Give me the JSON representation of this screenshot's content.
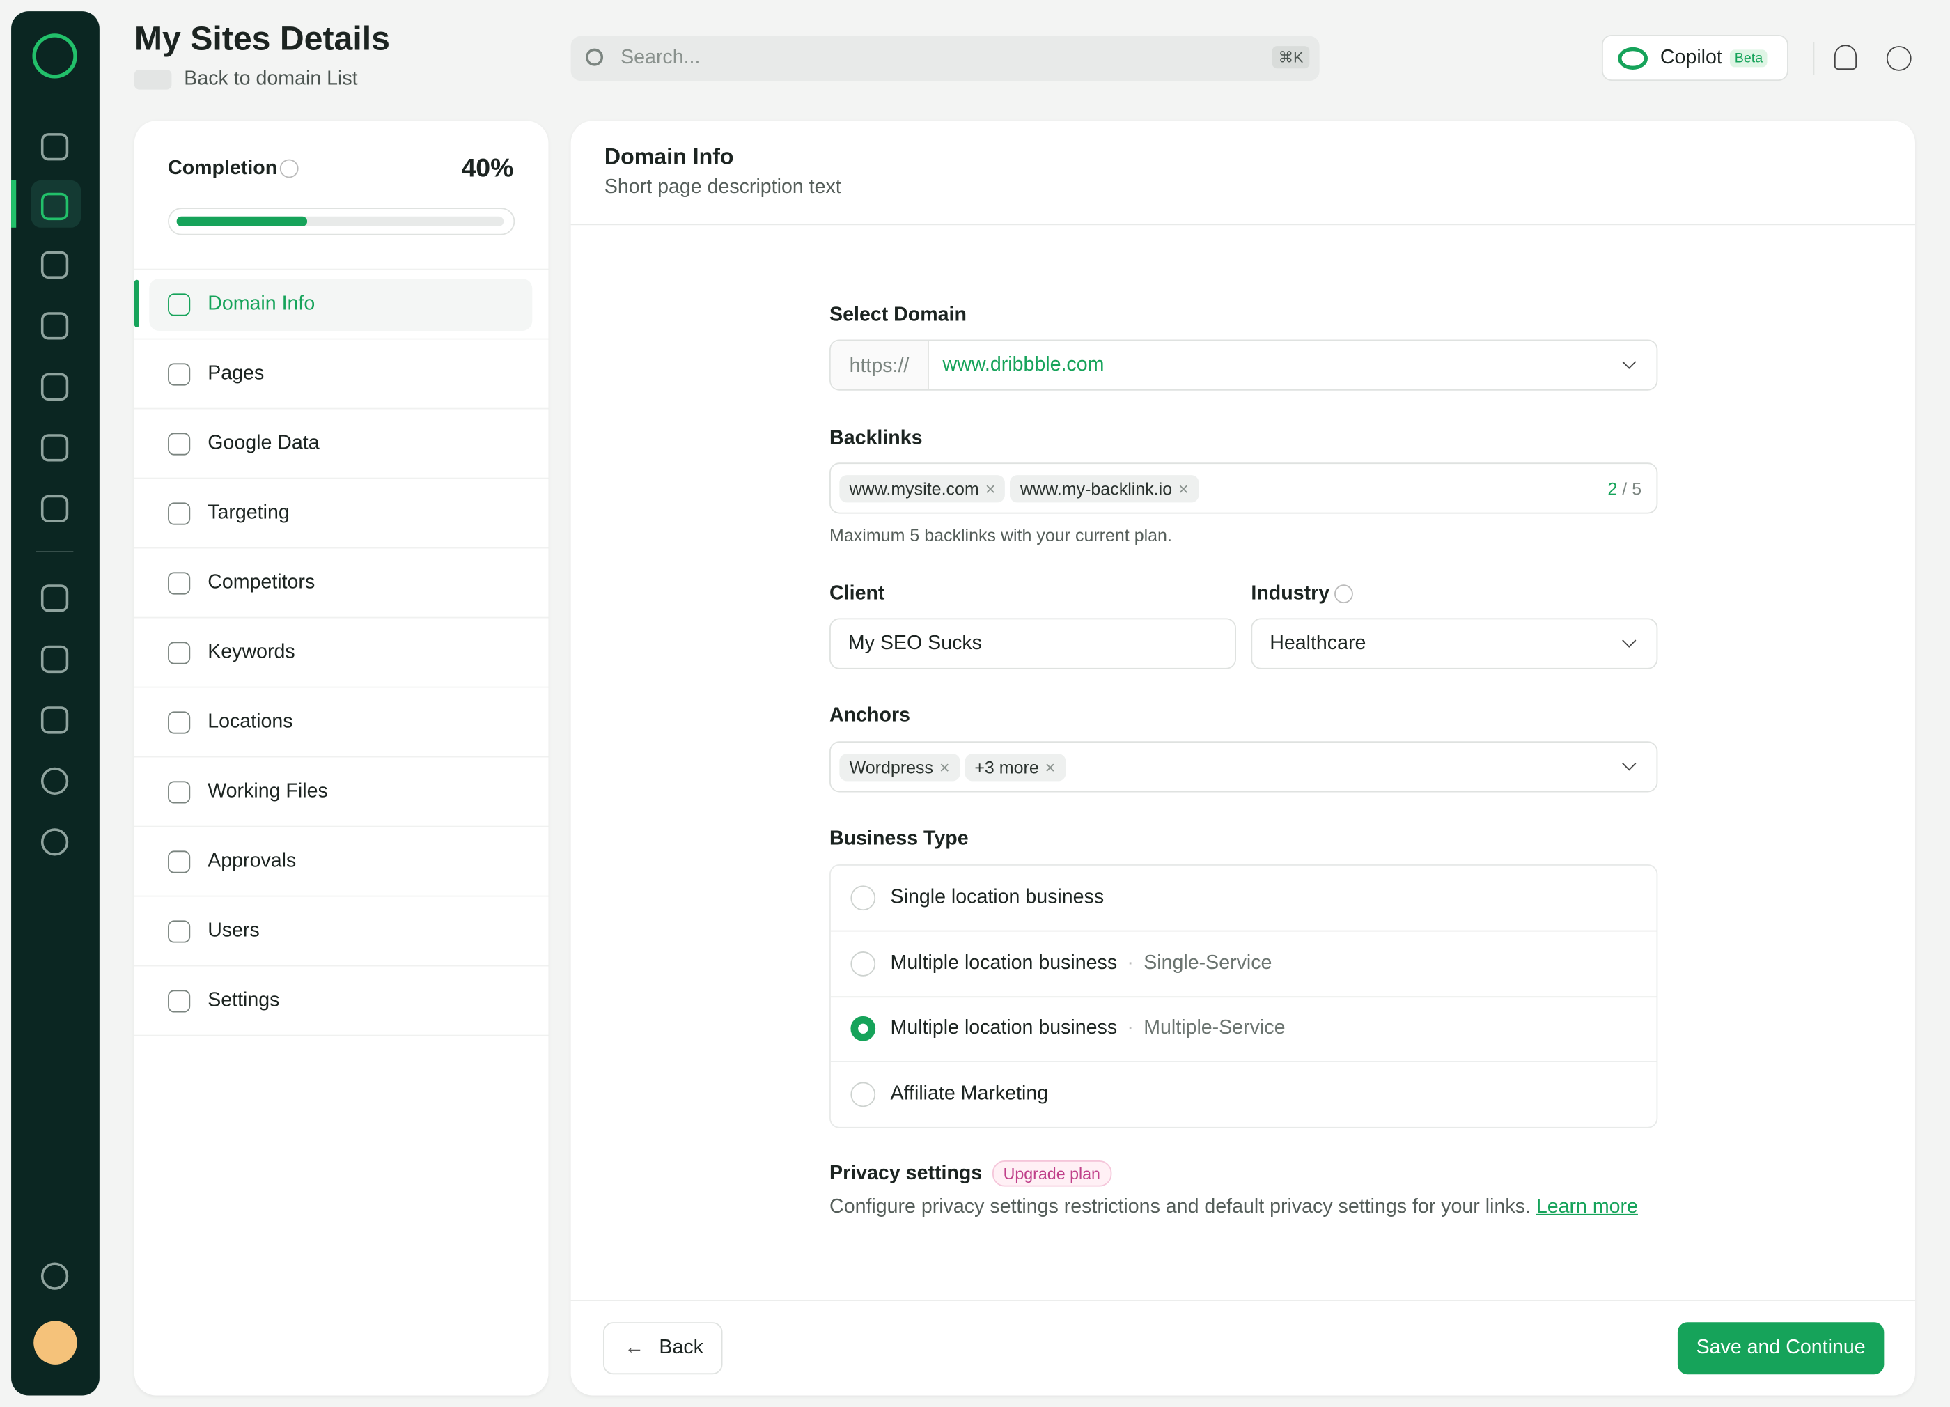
{
  "header": {
    "title": "My Sites Details",
    "back": "Back to domain List",
    "search_placeholder": "Search...",
    "shortcut": "⌘K",
    "copilot": "Copilot",
    "beta": "Beta"
  },
  "completion": {
    "label": "Completion",
    "value": 40,
    "value_label": "40%"
  },
  "nav": [
    "Domain Info",
    "Pages",
    "Google Data",
    "Targeting",
    "Competitors",
    "Keywords",
    "Locations",
    "Working Files",
    "Approvals",
    "Users",
    "Settings"
  ],
  "panel": {
    "title": "Domain Info",
    "description": "Short page description text"
  },
  "form": {
    "domain_label": "Select Domain",
    "domain_prefix": "https://",
    "domain_value": "www.dribbble.com",
    "backlinks_label": "Backlinks",
    "backlinks": [
      "www.mysite.com",
      "www.my-backlink.io"
    ],
    "backlinks_count": "2",
    "backlinks_sep": "/",
    "backlinks_max": "5",
    "backlinks_hint": "Maximum 5 backlinks with your current plan.",
    "client_label": "Client",
    "client_value": "My SEO Sucks",
    "industry_label": "Industry",
    "industry_value": "Healthcare",
    "anchors_label": "Anchors",
    "anchors": [
      "Wordpress",
      "+3 more"
    ],
    "business_label": "Business Type",
    "business_options": [
      {
        "label": "Single location business"
      },
      {
        "label": "Multiple location business",
        "sub": "Single-Service"
      },
      {
        "label": "Multiple location business",
        "sub": "Multiple-Service"
      },
      {
        "label": "Affiliate Marketing"
      }
    ],
    "privacy_title": "Privacy settings",
    "upgrade": "Upgrade plan",
    "privacy_text": "Configure privacy settings restrictions and default privacy settings for your links.",
    "learn_more": "Learn more"
  },
  "footer": {
    "back": "Back",
    "save": "Save and Continue"
  }
}
